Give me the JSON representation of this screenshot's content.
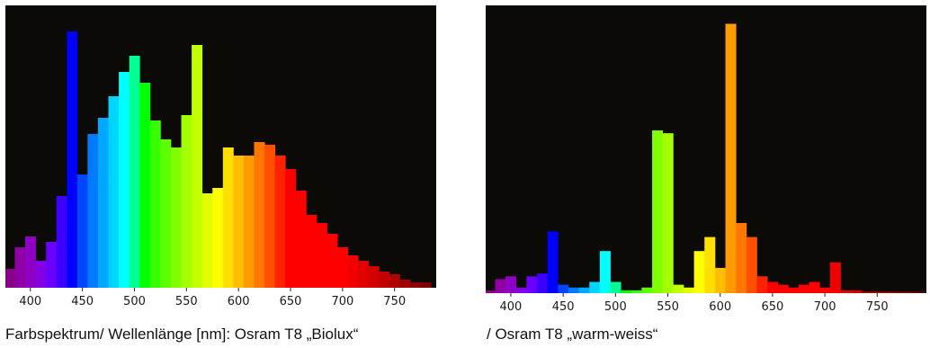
{
  "captions": {
    "left": "Farbspektrum/ Wellenlänge [nm]: Osram T8 „Biolux“",
    "right": "/ Osram T8 „warm-weiss“"
  },
  "colors": {
    "plot_background": "#0b0a06",
    "axis_band": "#ffffff"
  },
  "chart_data": [
    {
      "type": "bar",
      "title": "",
      "xlabel": "",
      "ylabel": "",
      "xlim": [
        376,
        790
      ],
      "ylim": [
        0,
        100
      ],
      "grid": false,
      "legend": "none",
      "xticks": [
        400,
        450,
        500,
        550,
        600,
        650,
        700,
        750
      ],
      "x": [
        380,
        390,
        400,
        410,
        420,
        430,
        440,
        450,
        460,
        470,
        480,
        490,
        500,
        510,
        520,
        530,
        540,
        550,
        560,
        570,
        580,
        590,
        600,
        610,
        620,
        630,
        640,
        650,
        660,
        670,
        680,
        690,
        700,
        710,
        720,
        730,
        740,
        750,
        760,
        770,
        780
      ],
      "values": [
        7,
        15,
        19,
        10,
        17,
        34,
        95,
        42,
        57,
        63,
        71,
        80,
        86,
        76,
        62,
        55,
        52,
        64,
        90,
        35,
        37,
        52,
        49,
        49,
        54,
        53,
        49,
        44,
        36,
        27,
        24,
        20,
        15,
        12,
        10,
        8,
        6,
        5,
        3,
        2,
        2
      ]
    },
    {
      "type": "bar",
      "title": "",
      "xlabel": "",
      "ylabel": "",
      "xlim": [
        376,
        797
      ],
      "ylim": [
        0,
        100
      ],
      "grid": false,
      "legend": "none",
      "xticks": [
        400,
        450,
        500,
        550,
        600,
        650,
        700,
        750
      ],
      "x": [
        380,
        390,
        400,
        410,
        420,
        430,
        440,
        450,
        460,
        470,
        480,
        490,
        500,
        510,
        520,
        530,
        540,
        550,
        560,
        570,
        580,
        590,
        600,
        610,
        620,
        630,
        640,
        650,
        660,
        670,
        680,
        690,
        700,
        710,
        720,
        730,
        740,
        750,
        760,
        770,
        780,
        790
      ],
      "values": [
        1,
        5,
        6,
        2,
        6,
        7,
        22,
        3,
        2,
        2,
        4,
        15,
        4,
        1,
        1,
        2,
        58,
        57,
        3,
        2,
        15,
        20,
        9,
        96,
        25,
        20,
        6,
        4,
        3,
        2,
        3,
        4,
        2,
        11,
        1,
        1,
        0.5,
        0.5,
        0.5,
        0.5,
        0.5,
        0.5
      ]
    }
  ]
}
